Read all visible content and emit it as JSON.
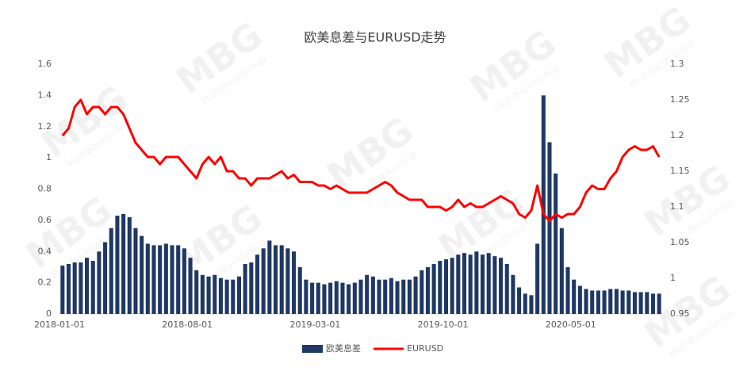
{
  "chart_data": {
    "type": "bar",
    "title": "欧美息差与EURUSD走势",
    "watermark": "MBG",
    "watermark_sub": "MultiBankGroup",
    "categories": [
      "2018-01-01",
      null,
      null,
      null,
      null,
      null,
      null,
      null,
      null,
      null,
      null,
      null,
      null,
      null,
      null,
      null,
      null,
      null,
      null,
      null,
      null,
      "2018-08-01",
      null,
      null,
      null,
      null,
      null,
      null,
      null,
      null,
      null,
      null,
      null,
      null,
      null,
      null,
      null,
      null,
      null,
      null,
      null,
      null,
      "2019-03-01",
      null,
      null,
      null,
      null,
      null,
      null,
      null,
      null,
      null,
      null,
      null,
      null,
      null,
      null,
      null,
      null,
      null,
      null,
      null,
      null,
      "2019-10-01",
      null,
      null,
      null,
      null,
      null,
      null,
      null,
      null,
      null,
      null,
      null,
      null,
      null,
      null,
      null,
      null,
      null,
      null,
      null,
      null,
      "2020-05-01",
      null,
      null,
      null,
      null,
      null,
      null,
      null,
      null,
      null,
      null,
      null,
      null,
      null,
      null
    ],
    "series": [
      {
        "name": "欧美息差",
        "type": "bar",
        "color": "#1f3864",
        "values": [
          0.31,
          0.32,
          0.33,
          0.33,
          0.36,
          0.34,
          0.4,
          0.46,
          0.55,
          0.63,
          0.64,
          0.62,
          0.55,
          0.5,
          0.45,
          0.44,
          0.44,
          0.45,
          0.44,
          0.44,
          0.42,
          0.36,
          0.28,
          0.25,
          0.24,
          0.25,
          0.23,
          0.22,
          0.22,
          0.24,
          0.32,
          0.33,
          0.38,
          0.42,
          0.47,
          0.44,
          0.44,
          0.42,
          0.4,
          0.3,
          0.22,
          0.2,
          0.2,
          0.19,
          0.2,
          0.21,
          0.2,
          0.19,
          0.2,
          0.22,
          0.25,
          0.24,
          0.22,
          0.22,
          0.23,
          0.21,
          0.22,
          0.22,
          0.24,
          0.28,
          0.3,
          0.32,
          0.34,
          0.35,
          0.36,
          0.38,
          0.39,
          0.38,
          0.4,
          0.38,
          0.39,
          0.37,
          0.36,
          0.32,
          0.25,
          0.17,
          0.13,
          0.12,
          0.45,
          1.4,
          1.1,
          0.9,
          0.55,
          0.3,
          0.22,
          0.18,
          0.16,
          0.15,
          0.15,
          0.15,
          0.16,
          0.16,
          0.15,
          0.15,
          0.14,
          0.14,
          0.14,
          0.13,
          0.13
        ]
      },
      {
        "name": "EURUSD",
        "type": "line",
        "axis": "y2",
        "color": "#ff0000",
        "values": [
          1.2,
          1.21,
          1.24,
          1.25,
          1.23,
          1.24,
          1.24,
          1.23,
          1.24,
          1.24,
          1.23,
          1.21,
          1.19,
          1.18,
          1.17,
          1.17,
          1.16,
          1.17,
          1.17,
          1.17,
          1.16,
          1.15,
          1.14,
          1.16,
          1.17,
          1.16,
          1.17,
          1.15,
          1.15,
          1.14,
          1.14,
          1.13,
          1.14,
          1.14,
          1.14,
          1.145,
          1.15,
          1.14,
          1.145,
          1.135,
          1.135,
          1.135,
          1.13,
          1.13,
          1.125,
          1.13,
          1.125,
          1.12,
          1.12,
          1.12,
          1.12,
          1.125,
          1.13,
          1.135,
          1.13,
          1.12,
          1.115,
          1.11,
          1.11,
          1.11,
          1.1,
          1.1,
          1.1,
          1.095,
          1.1,
          1.11,
          1.1,
          1.105,
          1.1,
          1.1,
          1.105,
          1.11,
          1.115,
          1.11,
          1.105,
          1.09,
          1.085,
          1.095,
          1.13,
          1.09,
          1.08,
          1.09,
          1.085,
          1.09,
          1.09,
          1.1,
          1.12,
          1.13,
          1.125,
          1.125,
          1.14,
          1.15,
          1.17,
          1.18,
          1.185,
          1.18,
          1.18,
          1.185,
          1.17
        ]
      }
    ],
    "ylim": [
      0,
      1.6
    ],
    "yticks": [
      0,
      0.2,
      0.4,
      0.6,
      0.8,
      1,
      1.2,
      1.4,
      1.6
    ],
    "y2lim": [
      0.95,
      1.3
    ],
    "y2ticks": [
      0.95,
      1,
      1.05,
      1.1,
      1.15,
      1.2,
      1.25,
      1.3
    ],
    "legend": "bottom"
  }
}
